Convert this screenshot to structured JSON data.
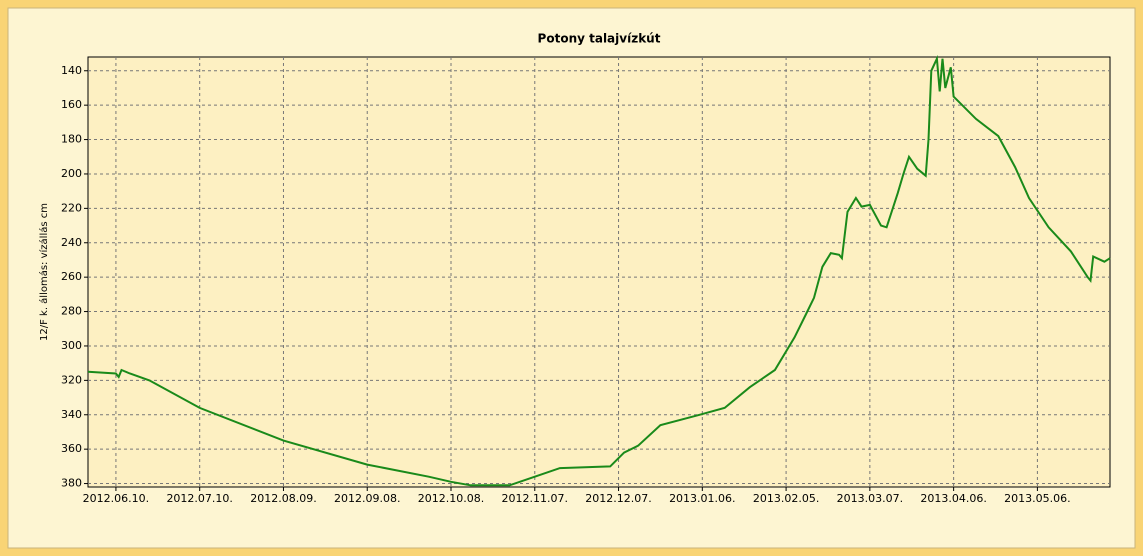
{
  "chart_data": {
    "type": "line",
    "title": "Potony talajvízkút",
    "y_label": "12/F k. állomás: vízállás cm",
    "x": [
      "2012-05-31",
      "2012-06-10",
      "2012-06-11",
      "2012-06-12",
      "2012-06-15",
      "2012-06-22",
      "2012-07-10",
      "2012-08-09",
      "2012-09-08",
      "2012-09-30",
      "2012-10-08",
      "2012-10-15",
      "2012-10-29",
      "2012-11-07",
      "2012-11-16",
      "2012-12-04",
      "2012-12-09",
      "2012-12-14",
      "2012-12-22",
      "2013-01-05",
      "2013-01-14",
      "2013-01-23",
      "2013-02-01",
      "2013-02-08",
      "2013-02-12",
      "2013-02-15",
      "2013-02-18",
      "2013-02-21",
      "2013-02-24",
      "2013-02-25",
      "2013-02-27",
      "2013-03-02",
      "2013-03-04",
      "2013-03-07",
      "2013-03-11",
      "2013-03-13",
      "2013-03-17",
      "2013-03-19",
      "2013-03-21",
      "2013-03-24",
      "2013-03-27",
      "2013-03-28",
      "2013-03-29",
      "2013-03-31",
      "2013-04-01",
      "2013-04-02",
      "2013-04-03",
      "2013-04-05",
      "2013-04-06",
      "2013-04-14",
      "2013-04-22",
      "2013-04-28",
      "2013-05-03",
      "2013-05-10",
      "2013-05-18",
      "2013-05-24",
      "2013-05-25",
      "2013-05-26",
      "2013-05-30",
      "2013-06-01"
    ],
    "series": [
      {
        "name": "12/F k. állomás",
        "color": "#1a8a1a",
        "values": [
          315,
          316,
          318,
          314,
          316,
          320,
          336,
          355,
          369,
          376,
          379,
          381,
          381,
          376,
          371,
          370,
          362,
          358,
          346,
          340,
          336,
          324,
          314,
          295,
          282,
          272,
          254,
          246,
          247,
          249,
          222,
          214,
          219,
          218,
          230,
          231,
          211,
          200,
          190,
          197,
          201,
          180,
          140,
          133,
          152,
          133,
          150,
          138,
          155,
          168,
          178,
          196,
          214,
          231,
          245,
          260,
          262,
          248,
          251,
          249
        ]
      }
    ],
    "xlim": [
      "2012-05-31",
      "2013-06-01"
    ],
    "xticks": [
      {
        "value": "2012-06-10",
        "label": "2012.06.10."
      },
      {
        "value": "2012-07-10",
        "label": "2012.07.10."
      },
      {
        "value": "2012-08-09",
        "label": "2012.08.09."
      },
      {
        "value": "2012-09-08",
        "label": "2012.09.08."
      },
      {
        "value": "2012-10-08",
        "label": "2012.10.08."
      },
      {
        "value": "2012-11-07",
        "label": "2012.11.07."
      },
      {
        "value": "2012-12-07",
        "label": "2012.12.07."
      },
      {
        "value": "2013-01-06",
        "label": "2013.01.06."
      },
      {
        "value": "2013-02-05",
        "label": "2013.02.05."
      },
      {
        "value": "2013-03-07",
        "label": "2013.03.07."
      },
      {
        "value": "2013-04-06",
        "label": "2013.04.06."
      },
      {
        "value": "2013-05-06",
        "label": "2013.05.06."
      }
    ],
    "ylim": [
      132,
      382
    ],
    "y_inverted": true,
    "yticks": [
      140,
      160,
      180,
      200,
      220,
      240,
      260,
      280,
      300,
      320,
      340,
      360,
      380
    ],
    "grid": true
  }
}
